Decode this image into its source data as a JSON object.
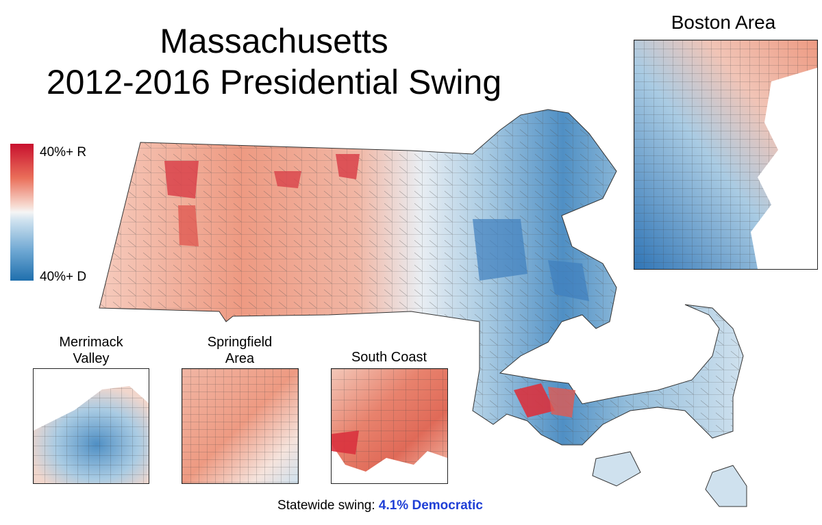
{
  "title_line1": "Massachusetts",
  "title_line2": "2012-2016 Presidential Swing",
  "legend": {
    "top_label": "40%+ R",
    "bottom_label": "40%+ D",
    "colors": {
      "strong_r": "#c8102e",
      "neutral": "#f5f5f5",
      "strong_d": "#1f6fad"
    }
  },
  "insets": {
    "boston": "Boston Area",
    "merrimack_line1": "Merrimack",
    "merrimack_line2": "Valley",
    "springfield_line1": "Springfield",
    "springfield_line2": "Area",
    "south_coast": "South Coast"
  },
  "footer": {
    "label": "Statewide swing:",
    "value": "4.1% Democratic"
  }
}
